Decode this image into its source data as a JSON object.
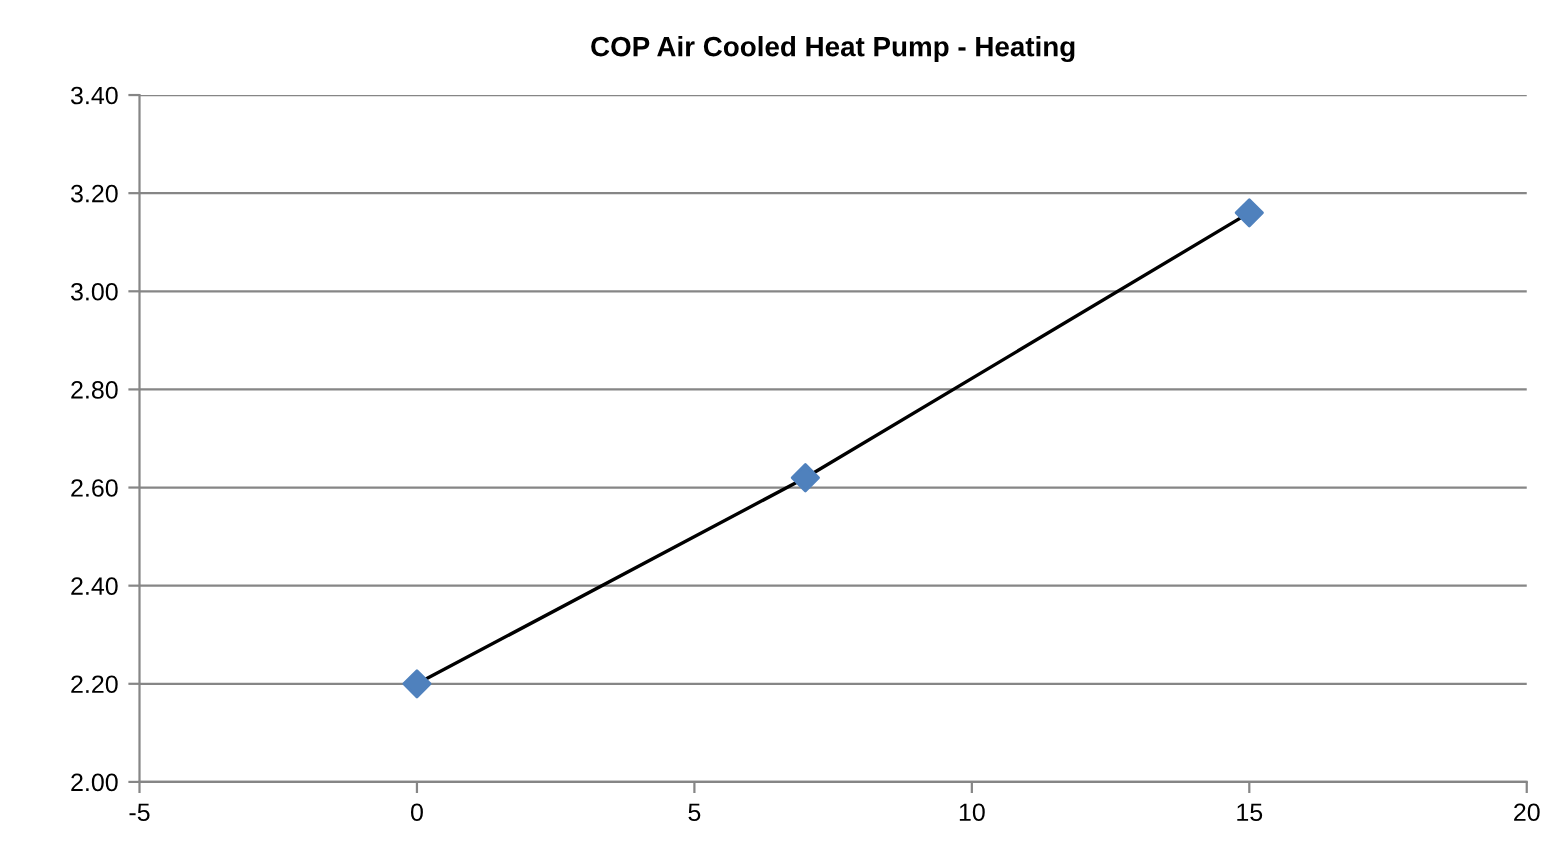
{
  "chart_data": {
    "type": "line",
    "title": "COP Air Cooled Heat Pump - Heating",
    "x": [
      0,
      7,
      15
    ],
    "series": [
      {
        "color": "#000000",
        "values": [
          2.2,
          2.62,
          3.16
        ],
        "marker": "none"
      },
      {
        "type": "scatter",
        "color": "#4f81bd",
        "values": [
          2.2,
          2.62,
          3.16
        ],
        "marker": "diamond"
      }
    ],
    "xlim": [
      -5,
      20
    ],
    "xticks": [
      -5,
      0,
      5,
      10,
      15,
      20
    ],
    "ylim": [
      2.0,
      3.4
    ],
    "yticks": [
      {
        "value": 2.0,
        "label": "2.00"
      },
      {
        "value": 2.2,
        "label": "2.20"
      },
      {
        "value": 2.4,
        "label": "2.40"
      },
      {
        "value": 2.6,
        "label": "2.60"
      },
      {
        "value": 2.8,
        "label": "2.80"
      },
      {
        "value": 3.0,
        "label": "3.00"
      },
      {
        "value": 3.2,
        "label": "3.20"
      },
      {
        "value": 3.4,
        "label": "3.40"
      }
    ],
    "grid": "y",
    "legend": false
  }
}
